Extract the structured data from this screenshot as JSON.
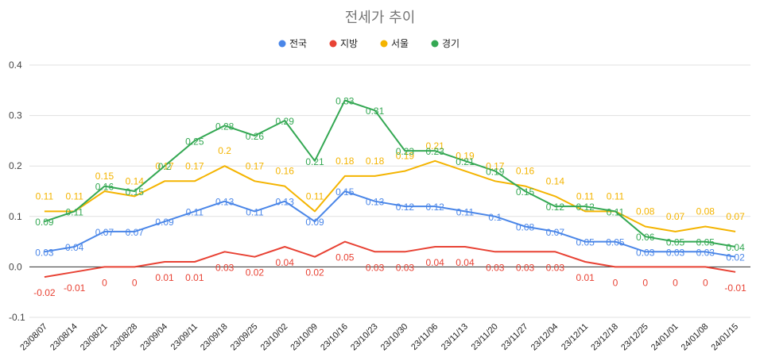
{
  "chart_data": {
    "type": "line",
    "title": "전세가 추이",
    "xlabel": "",
    "ylabel": "",
    "ylim": [
      -0.1,
      0.4
    ],
    "yticks": [
      -0.1,
      0.0,
      0.1,
      0.2,
      0.3,
      0.4
    ],
    "ytick_labels": [
      "-0.1",
      "0.0",
      "0.1",
      "0.2",
      "0.3",
      "0.4"
    ],
    "grid": true,
    "legend_position": "top",
    "categories": [
      "23/08/07",
      "23/08/14",
      "23/08/21",
      "23/08/28",
      "23/09/04",
      "23/09/11",
      "23/09/18",
      "23/09/25",
      "23/10/02",
      "23/10/09",
      "23/10/16",
      "23/10/23",
      "23/10/30",
      "23/11/06",
      "23/11/13",
      "23/11/20",
      "23/11/27",
      "23/12/04",
      "23/12/11",
      "23/12/18",
      "23/12/25",
      "24/01/01",
      "24/01/08",
      "24/01/15"
    ],
    "series": [
      {
        "name": "전국",
        "color": "#4a86e8",
        "values": [
          0.03,
          0.04,
          0.07,
          0.07,
          0.09,
          0.11,
          0.13,
          0.11,
          0.13,
          0.09,
          0.15,
          0.13,
          0.12,
          0.12,
          0.11,
          0.1,
          0.08,
          0.07,
          0.05,
          0.05,
          0.03,
          0.03,
          0.03,
          0.02
        ]
      },
      {
        "name": "지방",
        "color": "#e84234",
        "values": [
          -0.02,
          -0.01,
          0,
          0,
          0.01,
          0.01,
          0.03,
          0.02,
          0.04,
          0.02,
          0.05,
          0.03,
          0.03,
          0.04,
          0.04,
          0.03,
          0.03,
          0.03,
          0.01,
          0,
          0,
          0,
          0,
          -0.01
        ]
      },
      {
        "name": "서울",
        "color": "#f4b400",
        "values": [
          0.11,
          0.11,
          0.15,
          0.14,
          0.17,
          0.17,
          0.2,
          0.17,
          0.16,
          0.11,
          0.18,
          0.18,
          0.19,
          0.21,
          0.19,
          0.17,
          0.16,
          0.14,
          0.11,
          0.11,
          0.08,
          0.07,
          0.08,
          0.07
        ]
      },
      {
        "name": "경기",
        "color": "#34a853",
        "values": [
          0.09,
          0.11,
          0.16,
          0.15,
          0.2,
          0.25,
          0.28,
          0.26,
          0.29,
          0.21,
          0.33,
          0.31,
          0.23,
          0.23,
          0.21,
          0.19,
          0.15,
          0.12,
          0.12,
          0.11,
          0.06,
          0.05,
          0.05,
          0.04
        ]
      }
    ],
    "legend": [
      {
        "label": "전국",
        "color": "#4a86e8"
      },
      {
        "label": "지방",
        "color": "#e84234"
      },
      {
        "label": "서울",
        "color": "#f4b400"
      },
      {
        "label": "경기",
        "color": "#34a853"
      }
    ]
  }
}
